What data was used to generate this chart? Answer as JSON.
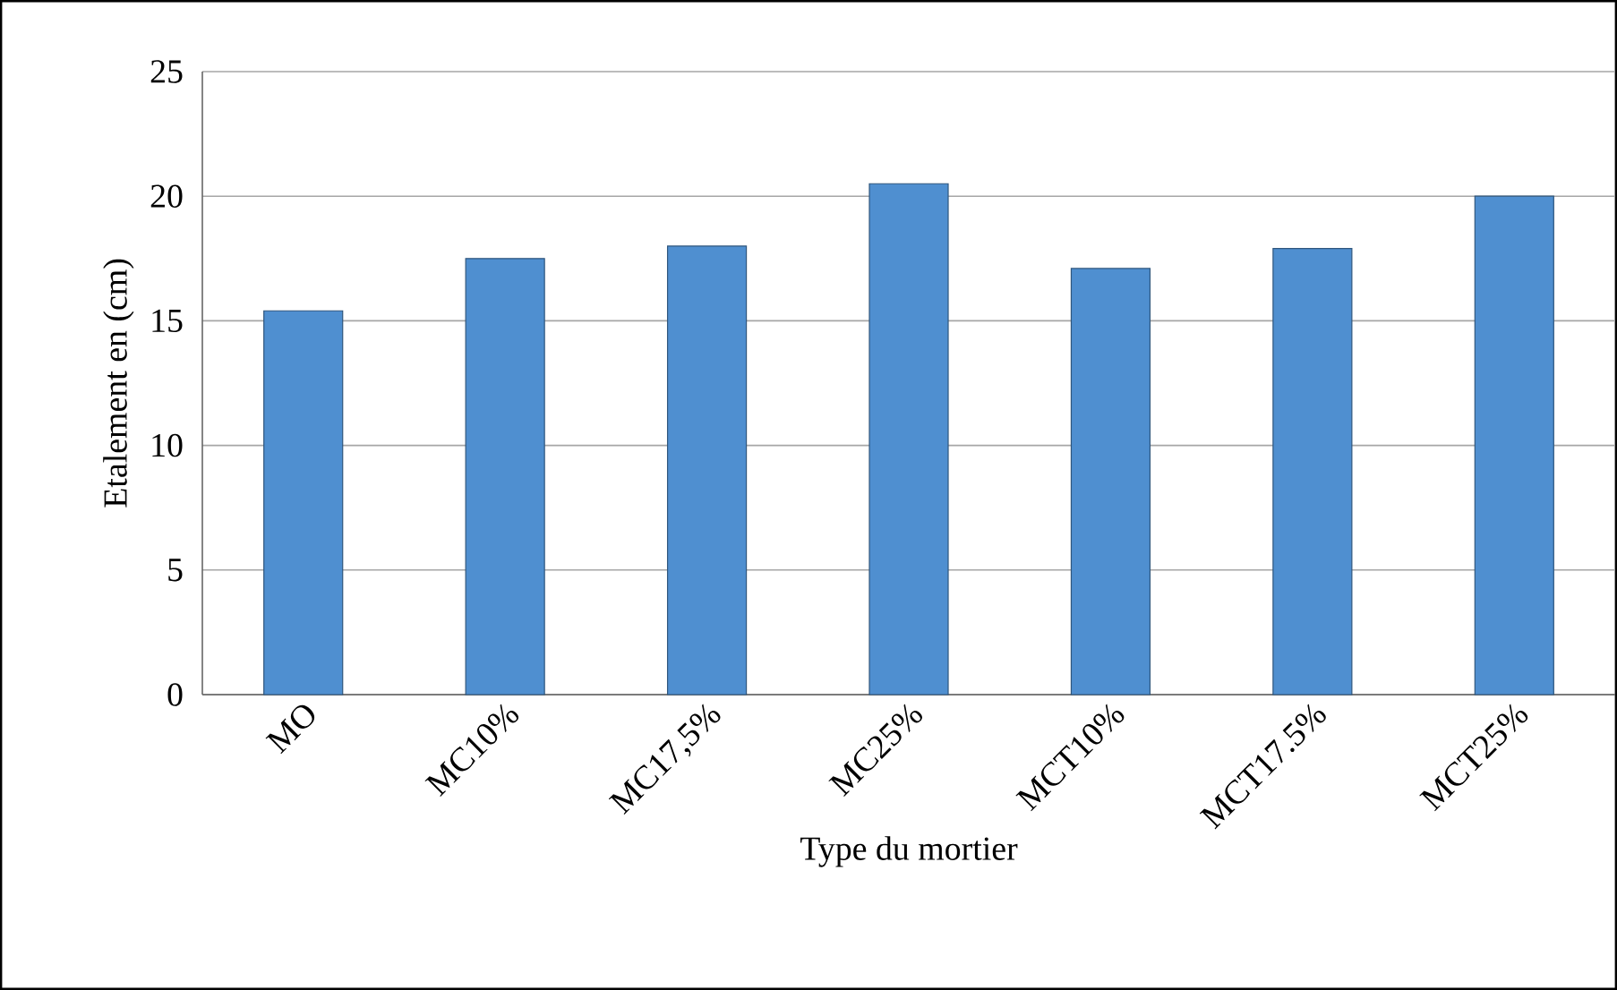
{
  "chart_data": {
    "type": "bar",
    "xlabel": "Type du mortier",
    "ylabel": "Etalement en (cm)",
    "categories": [
      "MO",
      "MC10%",
      "MC17,5%",
      "MC25%",
      "MCT10%",
      "MCT17.5%",
      "MCT25%"
    ],
    "values": [
      15.4,
      17.5,
      18.0,
      20.5,
      17.1,
      17.9,
      20.0
    ],
    "color": "#4f8fd0",
    "ylim": [
      0,
      25
    ],
    "yticks": [
      0,
      5,
      10,
      15,
      20,
      25
    ],
    "grid": "y"
  }
}
